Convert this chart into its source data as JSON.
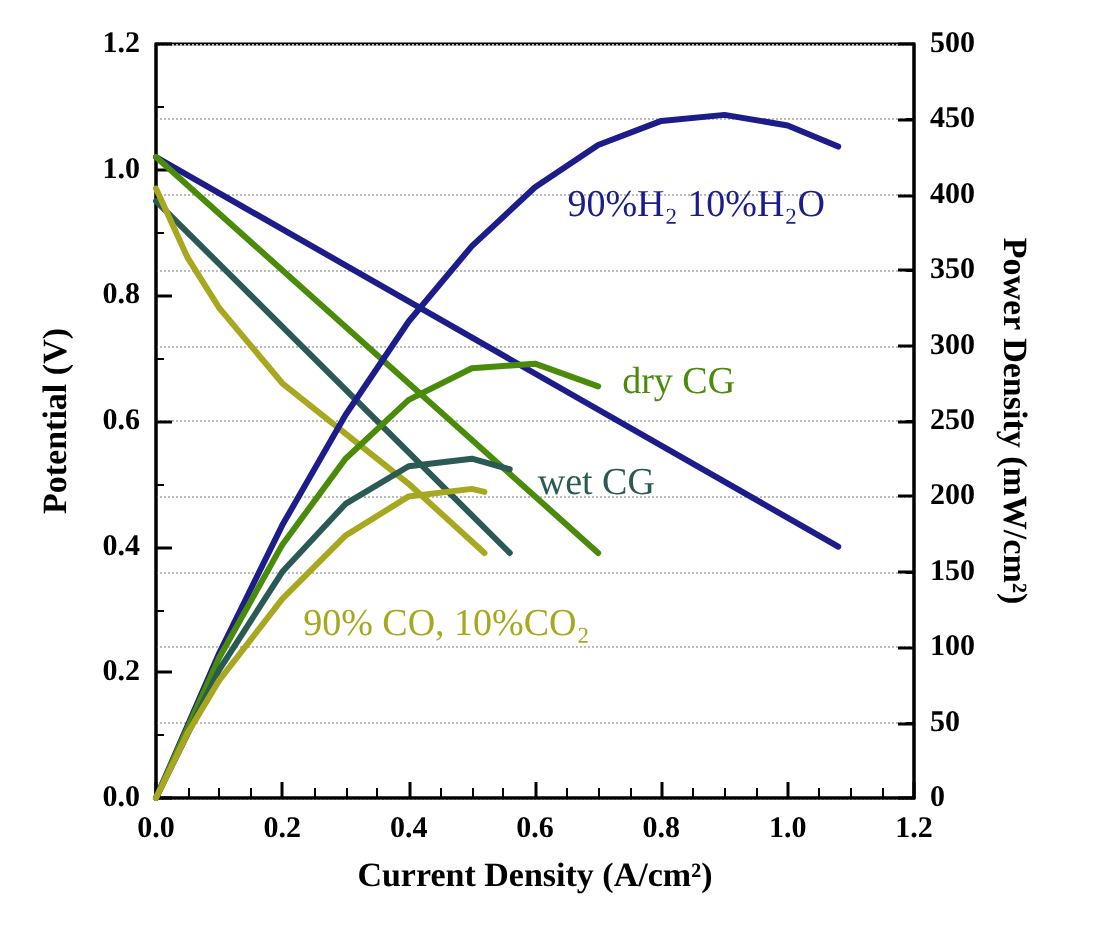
{
  "chart_data": {
    "type": "line",
    "xlabel": "Current Density (A/cm²)",
    "ylabel": "Potential (V)",
    "y2label": "Power Density (mW/cm²)",
    "xlim": [
      0,
      1.2
    ],
    "xticks": [
      {
        "value": 0,
        "label": "0.0"
      },
      {
        "value": 0.2,
        "label": "0.2"
      },
      {
        "value": 0.4,
        "label": "0.4"
      },
      {
        "value": 0.6,
        "label": "0.6"
      },
      {
        "value": 0.8,
        "label": "0.8"
      },
      {
        "value": 1,
        "label": "1.0"
      },
      {
        "value": 1.2,
        "label": "1.2"
      }
    ],
    "ylim": [
      0,
      1.2
    ],
    "yticks": [
      {
        "value": 0,
        "label": "0.0"
      },
      {
        "value": 0.2,
        "label": "0.2"
      },
      {
        "value": 0.4,
        "label": "0.4"
      },
      {
        "value": 0.6,
        "label": "0.6"
      },
      {
        "value": 0.8,
        "label": "0.8"
      },
      {
        "value": 1,
        "label": "1.0"
      },
      {
        "value": 1.2,
        "label": "1.2"
      }
    ],
    "y2lim": [
      0,
      500
    ],
    "y2ticks": [
      0,
      50,
      100,
      150,
      200,
      250,
      300,
      350,
      400,
      450,
      500
    ],
    "grid": "y",
    "line_style": "solid",
    "legend": false,
    "series": [
      {
        "color": "#1c1c8a",
        "x": [
          0,
          1.08
        ],
        "values": [
          1.02,
          0.4
        ]
      },
      {
        "color": "#4a8c0a",
        "x": [
          0,
          0.7
        ],
        "values": [
          1.02,
          0.39
        ]
      },
      {
        "color": "#2b5a55",
        "x": [
          0,
          0.56
        ],
        "values": [
          0.95,
          0.39
        ]
      },
      {
        "color": "#a8a820",
        "x": [
          0,
          0.05,
          0.1,
          0.2,
          0.3,
          0.4,
          0.52
        ],
        "values": [
          0.97,
          0.86,
          0.78,
          0.66,
          0.58,
          0.5,
          0.39
        ]
      },
      {
        "name": "90%H₂ 10%H₂O",
        "color": "#1c1c8a",
        "axis": "y2",
        "x": [
          0,
          0.1,
          0.2,
          0.3,
          0.4,
          0.5,
          0.6,
          0.7,
          0.8,
          0.9,
          1.0,
          1.08
        ],
        "values": [
          0,
          96,
          181,
          254,
          316,
          366,
          405,
          433,
          449,
          453,
          446,
          432
        ]
      },
      {
        "name": "dry CG",
        "color": "#4a8c0a",
        "axis": "y2",
        "x": [
          0,
          0.1,
          0.2,
          0.3,
          0.4,
          0.5,
          0.6,
          0.7
        ],
        "values": [
          0,
          93,
          168,
          225,
          264,
          285,
          288,
          273
        ]
      },
      {
        "name": "wet CG",
        "color": "#2b5a55",
        "axis": "y2",
        "x": [
          0,
          0.1,
          0.2,
          0.3,
          0.4,
          0.5,
          0.56
        ],
        "values": [
          0,
          85,
          150,
          195,
          220,
          225,
          218
        ]
      },
      {
        "name": "90% CO, 10%CO₂",
        "color": "#a8a820",
        "axis": "y2",
        "x": [
          0,
          0.05,
          0.1,
          0.2,
          0.3,
          0.4,
          0.5,
          0.52
        ],
        "values": [
          0,
          43,
          78,
          132,
          174,
          200,
          205,
          203
        ]
      }
    ]
  }
}
